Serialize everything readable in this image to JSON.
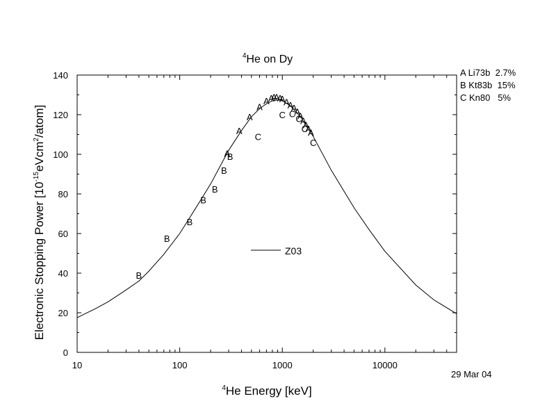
{
  "chart_data": {
    "type": "scatter",
    "title_prefix": "4",
    "title": "He on Dy",
    "xlabel_prefix": "4",
    "xlabel": "He Energy [keV]",
    "ylabel_parts": [
      "Electronic Stopping Power [10",
      "-15",
      "eVcm",
      "2",
      "/atom]"
    ],
    "x_scale": "log",
    "xlim": [
      10,
      50000
    ],
    "ylim": [
      0,
      140
    ],
    "x_ticks": [
      10,
      100,
      1000,
      10000
    ],
    "x_tick_labels": [
      "10",
      "100",
      "1000",
      "10000"
    ],
    "y_ticks": [
      0,
      20,
      40,
      60,
      80,
      100,
      120,
      140
    ],
    "y_tick_labels": [
      "0",
      "20",
      "40",
      "60",
      "80",
      "100",
      "120",
      "140"
    ],
    "grid": false,
    "curve": {
      "name": "Z03",
      "x": [
        10,
        15,
        20,
        30,
        40,
        50,
        70,
        100,
        150,
        200,
        300,
        400,
        500,
        600,
        700,
        800,
        900,
        1000,
        1200,
        1500,
        2000,
        3000,
        5000,
        7000,
        10000,
        20000,
        30000,
        50000
      ],
      "y": [
        17.5,
        22,
        25.5,
        31.5,
        36,
        41,
        49.5,
        60,
        74.5,
        85,
        102,
        112,
        119,
        123,
        125.5,
        127,
        127.5,
        127,
        124.5,
        119,
        109,
        92,
        73,
        62,
        51,
        34,
        26.5,
        19.5
      ]
    },
    "series": [
      {
        "marker": "A",
        "name": "Li73b",
        "uncertainty": "2.7%",
        "x": [
          290,
          380,
          480,
          600,
          700,
          780,
          830,
          880,
          950,
          1000,
          1100,
          1200,
          1300,
          1400,
          1500,
          1600,
          1700,
          1800,
          1900
        ],
        "y": [
          100.5,
          112,
          119,
          124,
          127,
          128.5,
          129,
          129,
          128.5,
          128,
          126.5,
          125,
          123.5,
          121.5,
          119.5,
          117,
          115,
          113,
          111
        ]
      },
      {
        "marker": "B",
        "name": "Kt83b",
        "uncertainty": "15%",
        "x": [
          40,
          75,
          125,
          170,
          220,
          270,
          310
        ],
        "y": [
          39,
          57.5,
          66,
          77,
          82.5,
          92,
          99
        ]
      },
      {
        "marker": "C",
        "name": "Kn80",
        "uncertainty": "5%",
        "x": [
          580,
          1000,
          1250,
          1450,
          1650,
          2000
        ],
        "y": [
          109,
          120,
          120.5,
          118,
          113,
          106
        ]
      }
    ],
    "legend": {
      "position": "top-right",
      "entries": [
        "A Li73b  2.7%",
        "B Kt83b  15%",
        "C Kn80   5%"
      ],
      "curve_label": "Z03"
    }
  },
  "date_stamp": "29 Mar 04"
}
